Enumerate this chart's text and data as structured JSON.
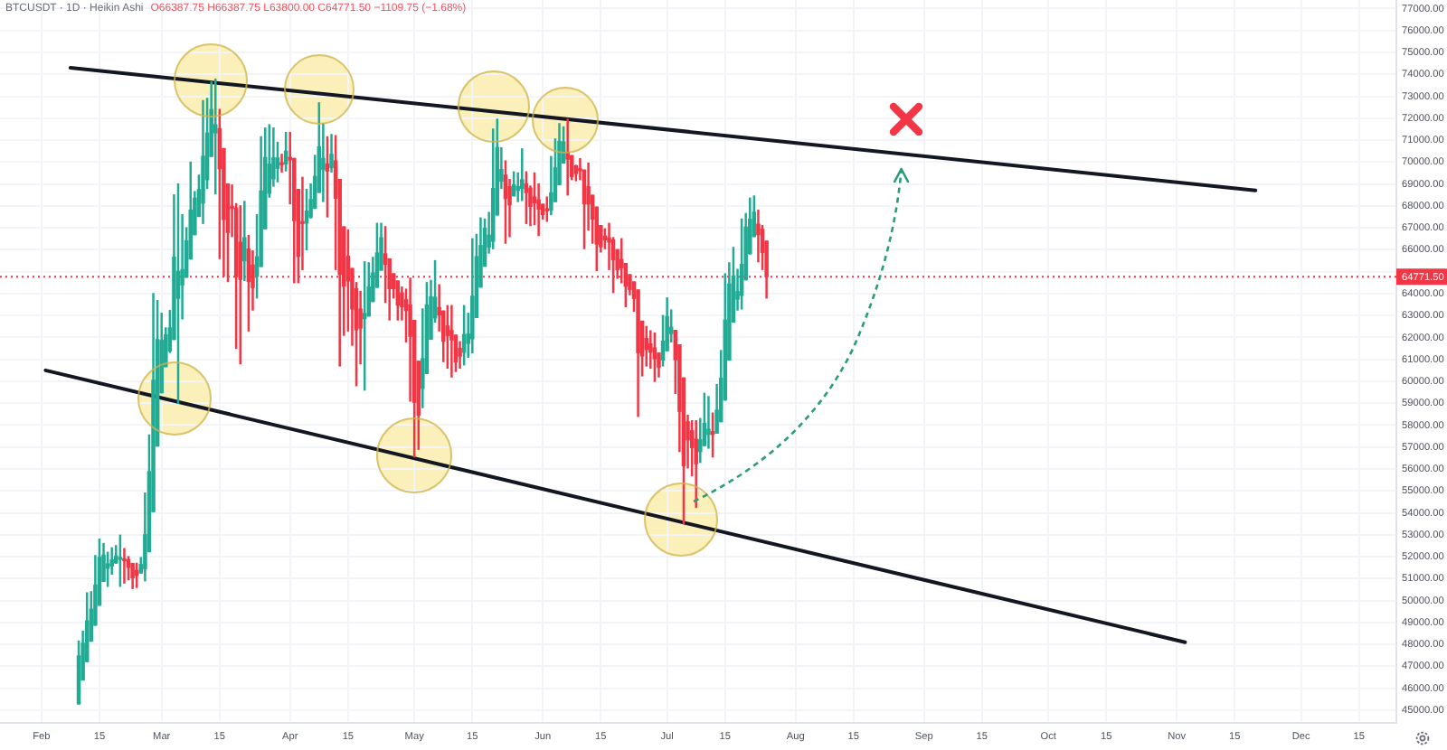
{
  "chart_data": {
    "type": "candlestick",
    "title": "BTCUSDT · 1D · Heikin Ashi",
    "subtitle": "O66387.75 H66387.75 L63800.00 C64771.50 −1109.75 (−1.68%)",
    "x": [
      "--02-10",
      "--02-11",
      "--02-12",
      "--02-13",
      "--02-14",
      "--02-15",
      "--02-16",
      "--02-17",
      "--02-18",
      "--02-19",
      "--02-20",
      "--02-21",
      "--02-22",
      "--02-23",
      "--02-24",
      "--02-25",
      "--02-26",
      "--02-27",
      "--02-28",
      "--02-29",
      "--03-01",
      "--03-02",
      "--03-03",
      "--03-04",
      "--03-05",
      "--03-06",
      "--03-07",
      "--03-08",
      "--03-09",
      "--03-10",
      "--03-11",
      "--03-12",
      "--03-13",
      "--03-14",
      "--03-15",
      "--03-16",
      "--03-17",
      "--03-18",
      "--03-19",
      "--03-20",
      "--03-21",
      "--03-22",
      "--03-23",
      "--03-24",
      "--03-25",
      "--03-26",
      "--03-27",
      "--03-28",
      "--03-29",
      "--03-30",
      "--03-31",
      "--04-01",
      "--04-02",
      "--04-03",
      "--04-04",
      "--04-05",
      "--04-06",
      "--04-07",
      "--04-08",
      "--04-09",
      "--04-10",
      "--04-11",
      "--04-12",
      "--04-13",
      "--04-14",
      "--04-15",
      "--04-16",
      "--04-17",
      "--04-18",
      "--04-19",
      "--04-20",
      "--04-21",
      "--04-22",
      "--04-23",
      "--04-24",
      "--04-25",
      "--04-26",
      "--04-27",
      "--04-28",
      "--04-29",
      "--04-30",
      "--05-01",
      "--05-02",
      "--05-03",
      "--05-04",
      "--05-05",
      "--05-06",
      "--05-07",
      "--05-08",
      "--05-09",
      "--05-10",
      "--05-11",
      "--05-12",
      "--05-13",
      "--05-14",
      "--05-15",
      "--05-16",
      "--05-17",
      "--05-18",
      "--05-19",
      "--05-20",
      "--05-21",
      "--05-22",
      "--05-23",
      "--05-24",
      "--05-25",
      "--05-26",
      "--05-27",
      "--05-28",
      "--05-29",
      "--05-30",
      "--05-31",
      "--06-01",
      "--06-02",
      "--06-03",
      "--06-04",
      "--06-05",
      "--06-06",
      "--06-07",
      "--06-08",
      "--06-09",
      "--06-10",
      "--06-11",
      "--06-12",
      "--06-13",
      "--06-14",
      "--06-15",
      "--06-16",
      "--06-17",
      "--06-18",
      "--06-19",
      "--06-20",
      "--06-21",
      "--06-22",
      "--06-23",
      "--06-24",
      "--06-25",
      "--06-26",
      "--06-27",
      "--06-28",
      "--06-29",
      "--06-30",
      "--07-01",
      "--07-02",
      "--07-03",
      "--07-04",
      "--07-05",
      "--07-06",
      "--07-07",
      "--07-08",
      "--07-09",
      "--07-10",
      "--07-11",
      "--07-12",
      "--07-13",
      "--07-14",
      "--07-15",
      "--07-16",
      "--07-17",
      "--07-18",
      "--07-19",
      "--07-20",
      "--07-21",
      "--07-22",
      "--07-23",
      "--07-24",
      "--07-25"
    ],
    "ohlc": [
      [
        45290,
        48150,
        45290,
        47470
      ],
      [
        46380,
        48600,
        46380,
        48050
      ],
      [
        47220,
        50350,
        47220,
        49070
      ],
      [
        48150,
        50400,
        48150,
        49600
      ],
      [
        48880,
        52050,
        48880,
        50700
      ],
      [
        49790,
        52800,
        49790,
        51970
      ],
      [
        50880,
        52600,
        50880,
        52070
      ],
      [
        51480,
        52200,
        50650,
        51670
      ],
      [
        51580,
        52400,
        51200,
        51850
      ],
      [
        51720,
        52500,
        51700,
        52030
      ],
      [
        51880,
        52980,
        50650,
        51920
      ],
      [
        51900,
        52370,
        50800,
        51820
      ],
      [
        51860,
        52000,
        50950,
        51520
      ],
      [
        51690,
        51690,
        50550,
        51040
      ],
      [
        51370,
        51700,
        50600,
        51150
      ],
      [
        51260,
        51960,
        51260,
        51640
      ],
      [
        51450,
        54900,
        50900,
        53000
      ],
      [
        52230,
        57550,
        52230,
        55880
      ],
      [
        54060,
        64000,
        54060,
        60040
      ],
      [
        57050,
        63680,
        57050,
        61900
      ],
      [
        59480,
        63100,
        59480,
        61860
      ],
      [
        60670,
        62430,
        60670,
        62110
      ],
      [
        61390,
        63230,
        61320,
        62430
      ],
      [
        61910,
        68500,
        61910,
        65660
      ],
      [
        63790,
        69000,
        59000,
        65010
      ],
      [
        64400,
        67600,
        62850,
        65090
      ],
      [
        64750,
        67000,
        64750,
        66400
      ],
      [
        65580,
        69990,
        65580,
        67800
      ],
      [
        66690,
        68650,
        66690,
        68350
      ],
      [
        67520,
        69400,
        67520,
        68740
      ],
      [
        68130,
        72800,
        67200,
        70260
      ],
      [
        69200,
        72900,
        68800,
        71320
      ],
      [
        70260,
        73650,
        70260,
        72390
      ],
      [
        71330,
        73780,
        68550,
        71700
      ],
      [
        71520,
        72400,
        65600,
        69700
      ],
      [
        70610,
        70610,
        64800,
        67380
      ],
      [
        69000,
        69000,
        64550,
        66790
      ],
      [
        67900,
        68950,
        66600,
        67890
      ],
      [
        67900,
        68100,
        61500,
        64780
      ],
      [
        66340,
        68000,
        60800,
        64650
      ],
      [
        65500,
        68200,
        64600,
        66550
      ],
      [
        66030,
        66650,
        62300,
        64560
      ],
      [
        65300,
        65950,
        63250,
        64280
      ],
      [
        64790,
        67600,
        63800,
        65680
      ],
      [
        65240,
        71150,
        65240,
        68680
      ],
      [
        66960,
        71550,
        66960,
        70200
      ],
      [
        68580,
        71700,
        68400,
        69900
      ],
      [
        69240,
        71550,
        68900,
        70190
      ],
      [
        69720,
        70900,
        69100,
        70180
      ],
      [
        69950,
        70350,
        69550,
        69880
      ],
      [
        69920,
        71350,
        69600,
        70490
      ],
      [
        70210,
        71350,
        68100,
        70100
      ],
      [
        70160,
        70160,
        64500,
        67330
      ],
      [
        68750,
        68750,
        64500,
        65700
      ],
      [
        67230,
        69300,
        65100,
        67200
      ],
      [
        67220,
        68750,
        66000,
        67760
      ],
      [
        67490,
        69000,
        67450,
        68290
      ],
      [
        67890,
        70300,
        67890,
        69340
      ],
      [
        68620,
        72700,
        68620,
        70690
      ],
      [
        69660,
        71750,
        68200,
        70160
      ],
      [
        69910,
        71150,
        67500,
        69590
      ],
      [
        69750,
        71250,
        69550,
        70350
      ],
      [
        70050,
        71200,
        65100,
        68350
      ],
      [
        69200,
        69200,
        60700,
        64880
      ],
      [
        67040,
        67040,
        62100,
        64350
      ],
      [
        65700,
        66900,
        62300,
        64580
      ],
      [
        65140,
        65140,
        61650,
        63300
      ],
      [
        64220,
        64500,
        59800,
        62350
      ],
      [
        63290,
        64100,
        60800,
        62430
      ],
      [
        62860,
        65450,
        59600,
        63090
      ],
      [
        62980,
        65400,
        62980,
        64300
      ],
      [
        63640,
        65650,
        63640,
        64940
      ],
      [
        64290,
        67200,
        64290,
        65850
      ],
      [
        65070,
        67200,
        65070,
        66550
      ],
      [
        65810,
        67050,
        63600,
        65340
      ],
      [
        65580,
        65580,
        62800,
        64230
      ],
      [
        64900,
        64900,
        63800,
        64230
      ],
      [
        64570,
        64570,
        62800,
        63480
      ],
      [
        64030,
        64300,
        62800,
        63400
      ],
      [
        63720,
        64200,
        61800,
        63230
      ],
      [
        63480,
        64700,
        59100,
        62050
      ],
      [
        62770,
        62770,
        56550,
        59040
      ],
      [
        60910,
        60910,
        56900,
        58450
      ],
      [
        59680,
        63300,
        58800,
        61030
      ],
      [
        60360,
        64500,
        60360,
        63480
      ],
      [
        61920,
        64600,
        61920,
        63850
      ],
      [
        62890,
        65500,
        62700,
        63830
      ],
      [
        63360,
        64400,
        62300,
        63030
      ],
      [
        63200,
        63200,
        60900,
        61840
      ],
      [
        62520,
        63450,
        60600,
        62090
      ],
      [
        62310,
        63450,
        60200,
        61890
      ],
      [
        62100,
        62100,
        60450,
        60890
      ],
      [
        61500,
        61800,
        60600,
        61150
      ],
      [
        61330,
        63450,
        60750,
        62130
      ],
      [
        61730,
        63100,
        61100,
        62150
      ],
      [
        61940,
        66500,
        61300,
        63880
      ],
      [
        62910,
        66700,
        62910,
        65680
      ],
      [
        64300,
        67450,
        64300,
        66190
      ],
      [
        65250,
        67400,
        65250,
        66980
      ],
      [
        66120,
        67700,
        65850,
        66660
      ],
      [
        66390,
        71500,
        66050,
        68790
      ],
      [
        67590,
        71950,
        67590,
        70660
      ],
      [
        69130,
        70650,
        68800,
        69660
      ],
      [
        69400,
        70050,
        66300,
        68340
      ],
      [
        68870,
        69200,
        66600,
        68050
      ],
      [
        68460,
        69550,
        68460,
        68960
      ],
      [
        68710,
        69500,
        68200,
        68880
      ],
      [
        68800,
        70600,
        68250,
        69190
      ],
      [
        69000,
        69550,
        67200,
        68610
      ],
      [
        68810,
        68900,
        67100,
        67980
      ],
      [
        68400,
        69500,
        67150,
        68140
      ],
      [
        68270,
        69000,
        66650,
        67860
      ],
      [
        68070,
        68070,
        67400,
        67610
      ],
      [
        67840,
        68400,
        67300,
        67780
      ],
      [
        67810,
        70250,
        67600,
        68590
      ],
      [
        68200,
        71050,
        68200,
        69730
      ],
      [
        68970,
        71750,
        68970,
        70940
      ],
      [
        69960,
        71600,
        69960,
        70910
      ],
      [
        70440,
        71950,
        68500,
        70140
      ],
      [
        70290,
        70290,
        69200,
        69340
      ],
      [
        69820,
        69850,
        69150,
        69480
      ],
      [
        69650,
        70150,
        69200,
        69610
      ],
      [
        69630,
        69630,
        66050,
        68100
      ],
      [
        68870,
        69950,
        66900,
        68090
      ],
      [
        68480,
        68480,
        66300,
        67400
      ],
      [
        67940,
        67940,
        65050,
        66260
      ],
      [
        67100,
        67100,
        65900,
        66140
      ],
      [
        66620,
        66950,
        66050,
        66450
      ],
      [
        66540,
        67200,
        65100,
        66350
      ],
      [
        66450,
        66550,
        64050,
        65550
      ],
      [
        66000,
        66000,
        64700,
        65100
      ],
      [
        65550,
        66500,
        64500,
        65180
      ],
      [
        65370,
        65370,
        63400,
        64340
      ],
      [
        64860,
        64860,
        63950,
        64190
      ],
      [
        64530,
        64530,
        63200,
        63780
      ],
      [
        64160,
        64160,
        58400,
        61310
      ],
      [
        62740,
        62740,
        60250,
        61160
      ],
      [
        61950,
        62500,
        60700,
        61450
      ],
      [
        61700,
        62300,
        60600,
        61330
      ],
      [
        61520,
        62200,
        60000,
        61030
      ],
      [
        61280,
        61280,
        60200,
        60650
      ],
      [
        60970,
        63000,
        60700,
        61830
      ],
      [
        61400,
        63800,
        61400,
        62950
      ],
      [
        62180,
        63250,
        61800,
        62460
      ],
      [
        62320,
        62320,
        59450,
        60990
      ],
      [
        61660,
        61660,
        56800,
        58630
      ],
      [
        60150,
        60150,
        53500,
        56150
      ],
      [
        58150,
        58450,
        56050,
        57330
      ],
      [
        57740,
        58200,
        55700,
        56980
      ],
      [
        57360,
        58200,
        54250,
        56240
      ],
      [
        56800,
        58300,
        56300,
        57330
      ],
      [
        57070,
        59450,
        57070,
        58080
      ],
      [
        57580,
        59300,
        56950,
        57810
      ],
      [
        57700,
        58550,
        56550,
        57580
      ],
      [
        57640,
        59850,
        57640,
        58680
      ],
      [
        58160,
        61400,
        58160,
        60130
      ],
      [
        59150,
        64900,
        59150,
        62790
      ],
      [
        60970,
        65400,
        60970,
        64430
      ],
      [
        62700,
        66100,
        62700,
        64800
      ],
      [
        63750,
        65100,
        63250,
        64090
      ],
      [
        63920,
        67400,
        63300,
        65330
      ],
      [
        64630,
        67650,
        64630,
        67030
      ],
      [
        65830,
        68350,
        65800,
        67390
      ],
      [
        66610,
        68450,
        66600,
        67710
      ],
      [
        67160,
        67800,
        65450,
        66690
      ],
      [
        66930,
        67100,
        65100,
        65880
      ],
      [
        66387.75,
        66387.75,
        63800,
        64771.5
      ]
    ],
    "colors": [
      "#22ab94",
      "#22ab94",
      "#22ab94",
      "#22ab94",
      "#22ab94",
      "#22ab94",
      "#22ab94",
      "#22ab94",
      "#22ab94",
      "#22ab94",
      "#22ab94",
      "#f23645",
      "#f23645",
      "#f23645",
      "#f23645",
      "#22ab94",
      "#22ab94",
      "#22ab94",
      "#22ab94",
      "#22ab94",
      "#22ab94",
      "#22ab94",
      "#22ab94",
      "#22ab94",
      "#22ab94",
      "#22ab94",
      "#22ab94",
      "#22ab94",
      "#22ab94",
      "#22ab94",
      "#22ab94",
      "#22ab94",
      "#22ab94",
      "#22ab94",
      "#f23645",
      "#f23645",
      "#f23645",
      "#f23645",
      "#f23645",
      "#f23645",
      "#22ab94",
      "#f23645",
      "#f23645",
      "#22ab94",
      "#22ab94",
      "#22ab94",
      "#22ab94",
      "#22ab94",
      "#22ab94",
      "#f23645",
      "#22ab94",
      "#f23645",
      "#f23645",
      "#f23645",
      "#f23645",
      "#22ab94",
      "#22ab94",
      "#22ab94",
      "#22ab94",
      "#22ab94",
      "#f23645",
      "#22ab94",
      "#f23645",
      "#f23645",
      "#f23645",
      "#f23645",
      "#f23645",
      "#f23645",
      "#f23645",
      "#22ab94",
      "#22ab94",
      "#22ab94",
      "#22ab94",
      "#22ab94",
      "#f23645",
      "#f23645",
      "#f23645",
      "#f23645",
      "#f23645",
      "#f23645",
      "#f23645",
      "#f23645",
      "#f23645",
      "#22ab94",
      "#22ab94",
      "#22ab94",
      "#22ab94",
      "#f23645",
      "#f23645",
      "#f23645",
      "#f23645",
      "#f23645",
      "#f23645",
      "#22ab94",
      "#22ab94",
      "#22ab94",
      "#22ab94",
      "#22ab94",
      "#22ab94",
      "#22ab94",
      "#22ab94",
      "#22ab94",
      "#22ab94",
      "#f23645",
      "#f23645",
      "#22ab94",
      "#22ab94",
      "#22ab94",
      "#f23645",
      "#f23645",
      "#f23645",
      "#f23645",
      "#f23645",
      "#f23645",
      "#22ab94",
      "#22ab94",
      "#22ab94",
      "#22ab94",
      "#f23645",
      "#f23645",
      "#f23645",
      "#f23645",
      "#f23645",
      "#f23645",
      "#f23645",
      "#f23645",
      "#f23645",
      "#f23645",
      "#f23645",
      "#f23645",
      "#f23645",
      "#f23645",
      "#f23645",
      "#f23645",
      "#f23645",
      "#f23645",
      "#f23645",
      "#f23645",
      "#f23645",
      "#f23645",
      "#f23645",
      "#22ab94",
      "#22ab94",
      "#22ab94",
      "#f23645",
      "#f23645",
      "#f23645",
      "#f23645",
      "#f23645",
      "#f23645",
      "#22ab94",
      "#22ab94",
      "#22ab94",
      "#f23645",
      "#22ab94",
      "#22ab94",
      "#22ab94",
      "#22ab94",
      "#22ab94",
      "#22ab94",
      "#22ab94",
      "#22ab94",
      "#22ab94",
      "#22ab94",
      "#f23645",
      "#f23645",
      "#f23645"
    ],
    "series": [
      {
        "type": "line",
        "x": [
          "--02-08",
          "--11-20"
        ],
        "values": [
          74300,
          68700
        ],
        "color": "#131722"
      },
      {
        "type": "line",
        "x": [
          "--02-02",
          "--11-03"
        ],
        "values": [
          60500,
          48100
        ],
        "color": "#131722"
      }
    ],
    "marker": "none",
    "xlim": [
      "--01-22",
      "--12-24"
    ],
    "xticks": [
      {
        "value": "--02-01",
        "label": "Feb"
      },
      {
        "value": "--02-15",
        "label": "15"
      },
      {
        "value": "--03-01",
        "label": "Mar"
      },
      {
        "value": "--03-15",
        "label": "15"
      },
      {
        "value": "--04-01",
        "label": "Apr"
      },
      {
        "value": "--04-15",
        "label": "15"
      },
      {
        "value": "--05-01",
        "label": "May"
      },
      {
        "value": "--05-15",
        "label": "15"
      },
      {
        "value": "--06-01",
        "label": "Jun"
      },
      {
        "value": "--06-15",
        "label": "15"
      },
      {
        "value": "--07-01",
        "label": "Jul"
      },
      {
        "value": "--07-15",
        "label": "15"
      },
      {
        "value": "--08-01",
        "label": "Aug"
      },
      {
        "value": "--08-15",
        "label": "15"
      },
      {
        "value": "--09-01",
        "label": "Sep"
      },
      {
        "value": "--09-15",
        "label": "15"
      },
      {
        "value": "--10-01",
        "label": "Oct"
      },
      {
        "value": "--10-15",
        "label": "15"
      },
      {
        "value": "--11-01",
        "label": "Nov"
      },
      {
        "value": "--11-15",
        "label": "15"
      },
      {
        "value": "--12-01",
        "label": "Dec"
      },
      {
        "value": "--12-15",
        "label": "15"
      }
    ],
    "ylim": [
      44420,
      77390
    ],
    "yticks": [
      {
        "value": 45000,
        "label": "45000.00"
      },
      {
        "value": 46000,
        "label": "46000.00"
      },
      {
        "value": 47000,
        "label": "47000.00"
      },
      {
        "value": 48000,
        "label": "48000.00"
      },
      {
        "value": 49000,
        "label": "49000.00"
      },
      {
        "value": 50000,
        "label": "50000.00"
      },
      {
        "value": 51000,
        "label": "51000.00"
      },
      {
        "value": 52000,
        "label": "52000.00"
      },
      {
        "value": 53000,
        "label": "53000.00"
      },
      {
        "value": 54000,
        "label": "54000.00"
      },
      {
        "value": 55000,
        "label": "55000.00"
      },
      {
        "value": 56000,
        "label": "56000.00"
      },
      {
        "value": 57000,
        "label": "57000.00"
      },
      {
        "value": 58000,
        "label": "58000.00"
      },
      {
        "value": 59000,
        "label": "59000.00"
      },
      {
        "value": 60000,
        "label": "60000.00"
      },
      {
        "value": 61000,
        "label": "61000.00"
      },
      {
        "value": 62000,
        "label": "62000.00"
      },
      {
        "value": 63000,
        "label": "63000.00"
      },
      {
        "value": 64000,
        "label": "64000.00"
      },
      {
        "value": 65000,
        "label": null
      },
      {
        "value": 66000,
        "label": "66000.00"
      },
      {
        "value": 67000,
        "label": "67000.00"
      },
      {
        "value": 68000,
        "label": "68000.00"
      },
      {
        "value": 69000,
        "label": "69000.00"
      },
      {
        "value": 70000,
        "label": "70000.00"
      },
      {
        "value": 71000,
        "label": "71000.00"
      },
      {
        "value": 72000,
        "label": "72000.00"
      },
      {
        "value": 73000,
        "label": "73000.00"
      },
      {
        "value": 74000,
        "label": "74000.00"
      },
      {
        "value": 75000,
        "label": "75000.00"
      },
      {
        "value": 76000,
        "label": "76000.00"
      },
      {
        "value": 77000,
        "label": "77000.00"
      }
    ],
    "ref_lines": [
      {
        "axis": "y",
        "value": 64771.5,
        "label": "64771.50",
        "color": "#f23645",
        "line_style": "dotted"
      }
    ],
    "grid": true,
    "legend": false
  }
}
